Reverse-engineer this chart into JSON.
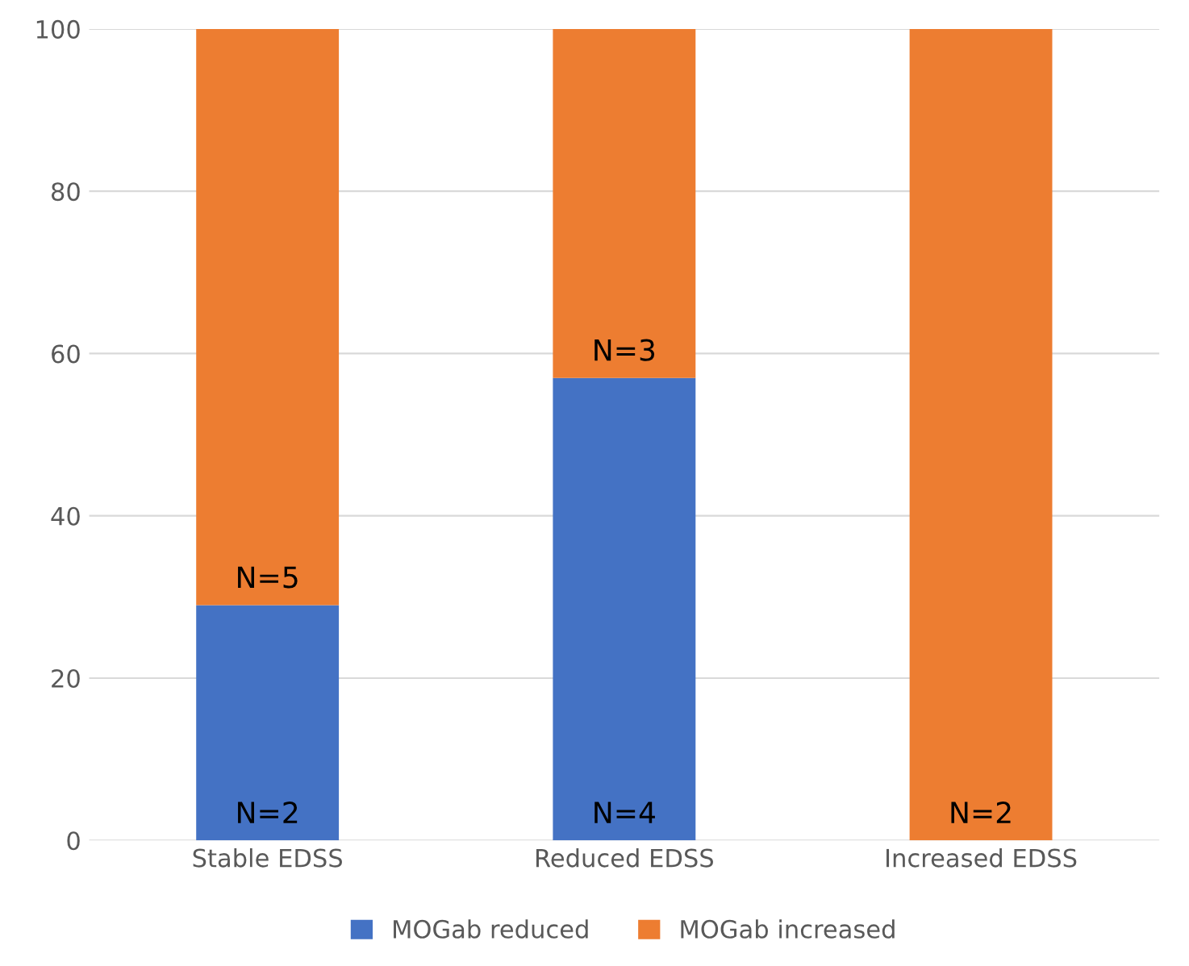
{
  "chart_data": {
    "type": "bar",
    "stacked": true,
    "categories": [
      "Stable EDSS",
      "Reduced EDSS",
      "Increased EDSS"
    ],
    "series": [
      {
        "name": "MOGab reduced",
        "color": "#4472c4",
        "values": [
          29,
          57,
          0
        ]
      },
      {
        "name": "MOGab increased",
        "color": "#ed7d31",
        "values": [
          71,
          43,
          100
        ]
      }
    ],
    "ylim": [
      0,
      100
    ],
    "yticks": [
      0,
      20,
      40,
      60,
      80,
      100
    ],
    "grid": "y",
    "legend": "bottom",
    "annotations": [
      "N=2",
      "N=4",
      "N=5",
      "N=3",
      "N=2"
    ]
  }
}
